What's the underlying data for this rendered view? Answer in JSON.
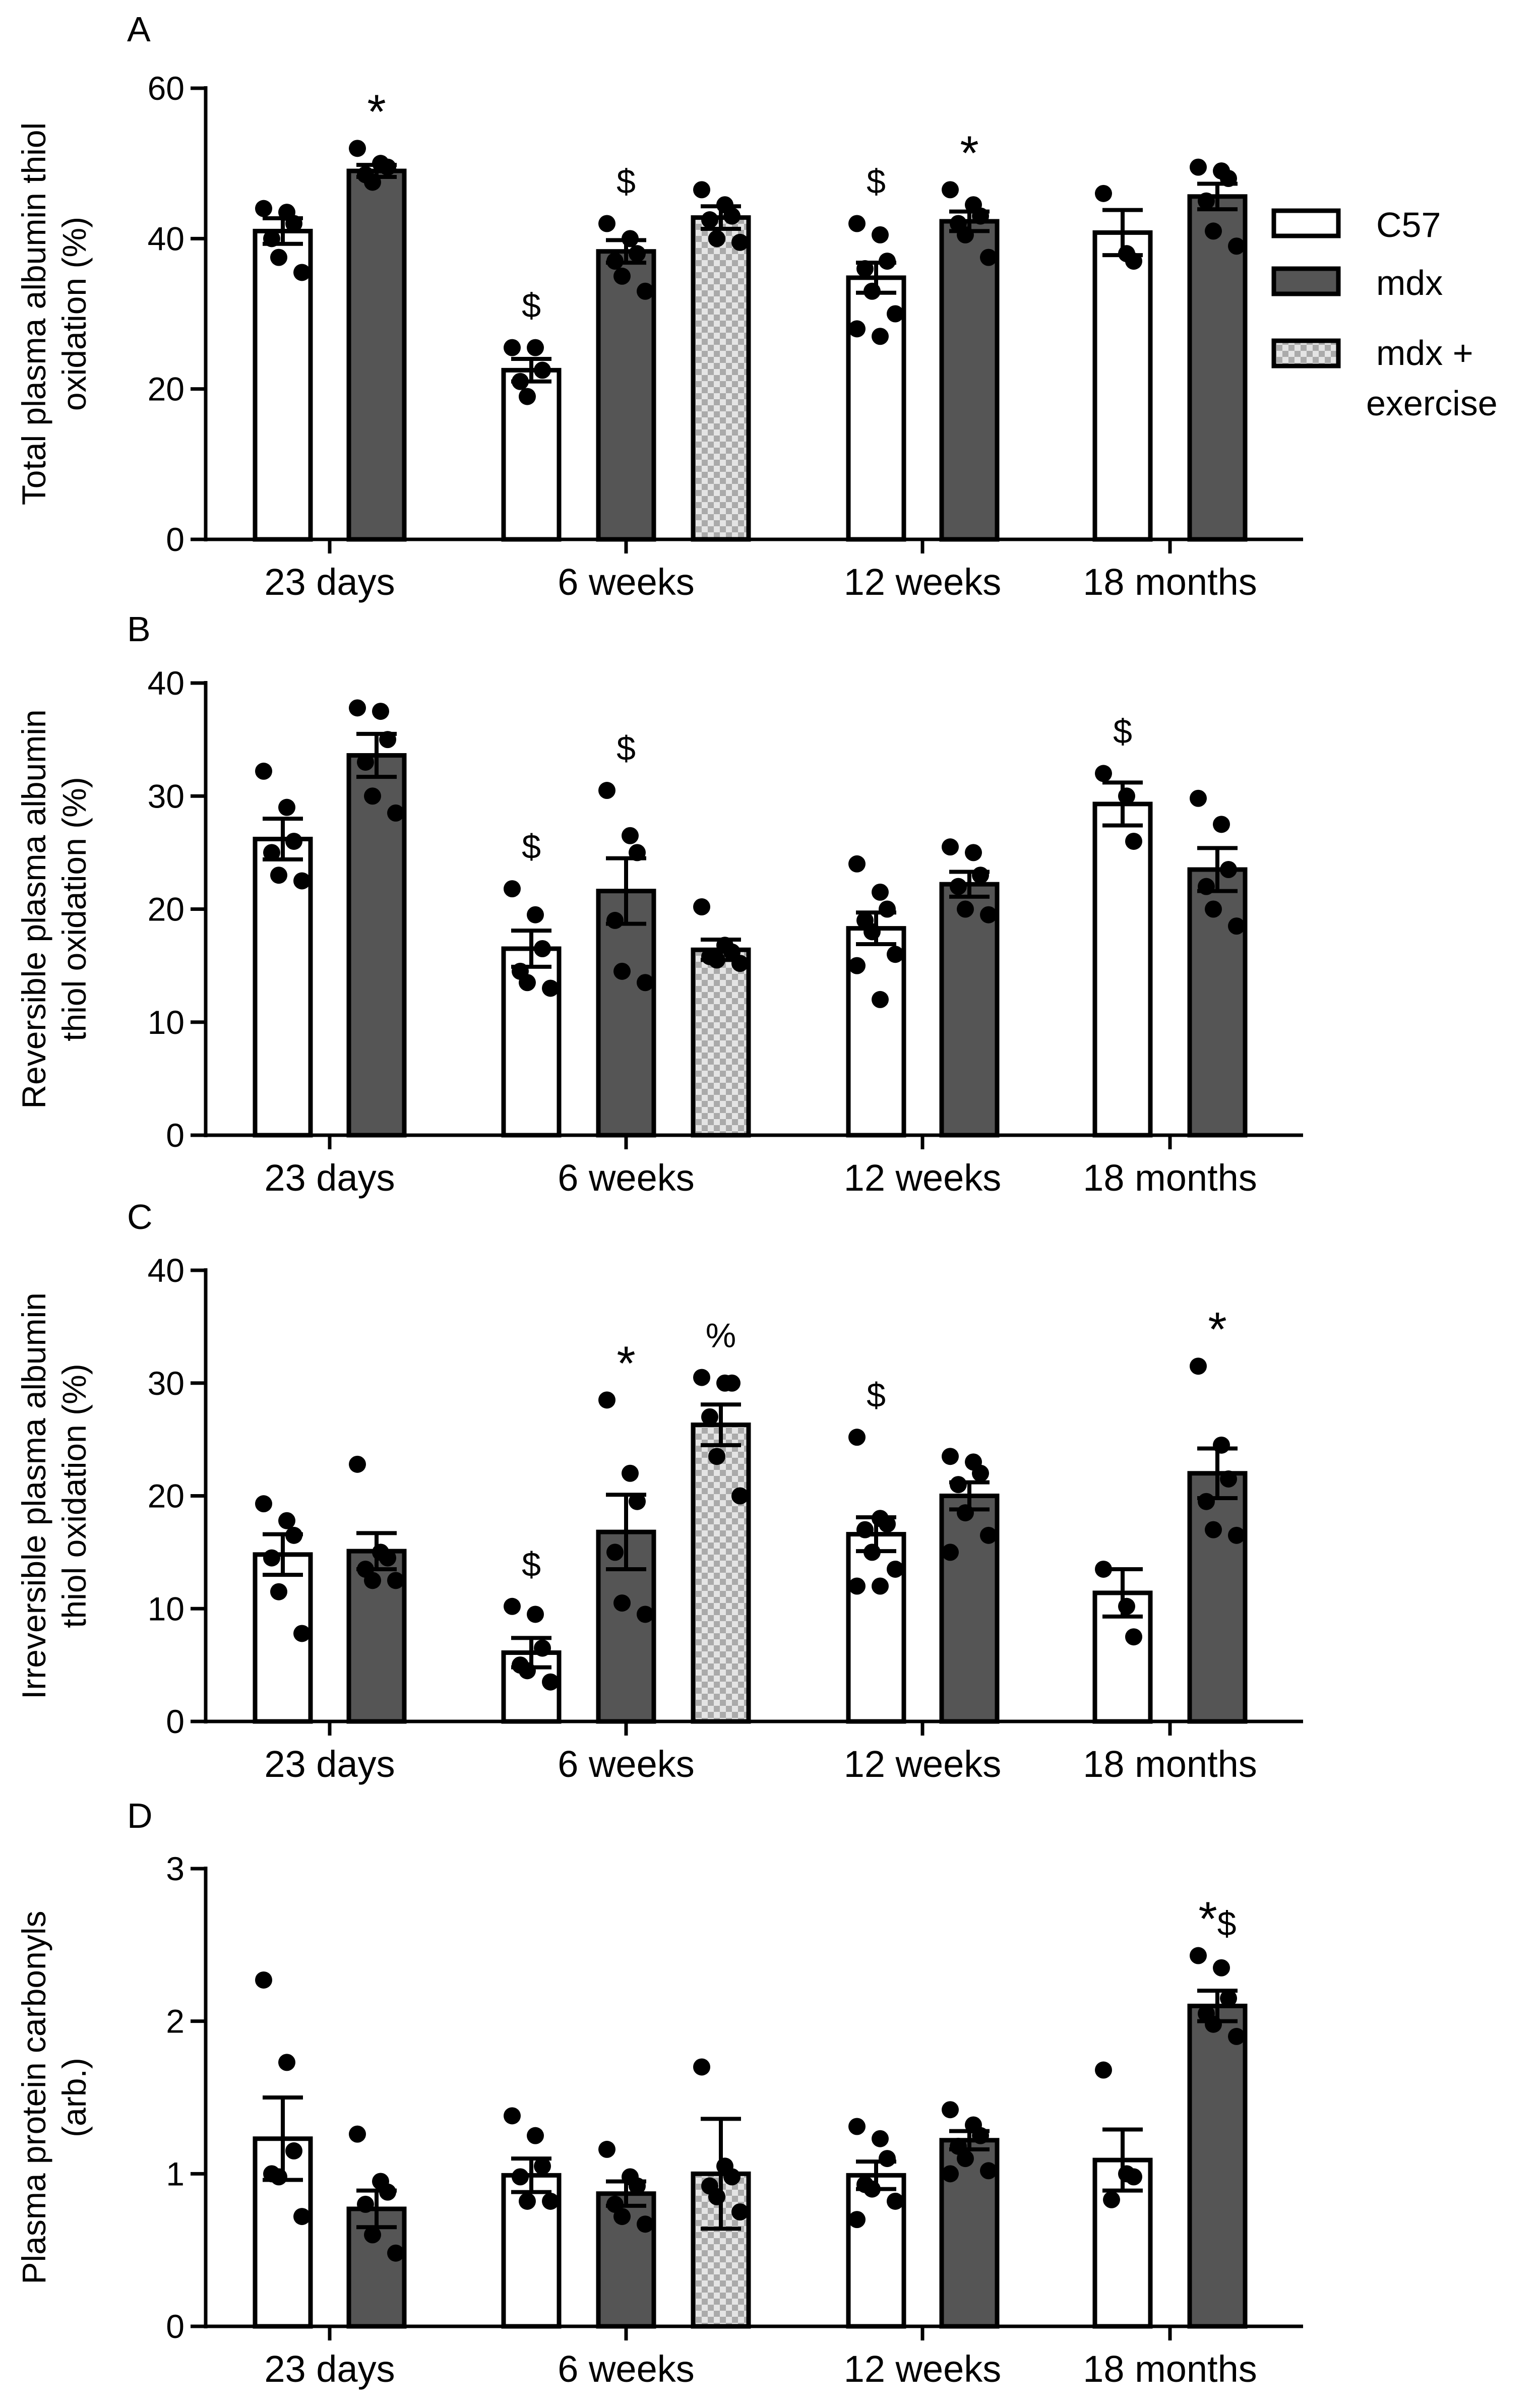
{
  "figure": {
    "legend": {
      "entries": [
        {
          "label": "C57",
          "pattern": "white"
        },
        {
          "label": "mdx",
          "pattern": "dark"
        },
        {
          "label_lines": [
            "mdx +",
            "exercise"
          ],
          "pattern": "checker"
        }
      ]
    },
    "colors": {
      "dark_bar": "#555555",
      "white_bar": "#ffffff",
      "stroke": "#000000",
      "checker_a": "#aaaaaa",
      "checker_b": "#e4e4e4"
    }
  },
  "chart_data": [
    {
      "type": "bar",
      "panel": "A",
      "ylabel_lines": [
        "Total plasma albumin thiol",
        "oxidation (%)"
      ],
      "ylim": [
        0,
        60
      ],
      "yticks": [
        "0",
        "20",
        "40",
        "60"
      ],
      "categories": [
        "23 days",
        "6 weeks",
        "12 weeks",
        "18 months"
      ],
      "series": [
        {
          "name": "C57",
          "values": [
            41,
            22.5,
            34.8,
            40.8
          ],
          "sem": [
            1.7,
            1.5,
            2,
            3
          ],
          "annotations": [
            "",
            "$",
            "$",
            ""
          ],
          "points": [
            [
              44,
              43.5,
              42,
              40,
              37.5,
              35.5
            ],
            [
              25.5,
              25.5,
              22.5,
              21,
              19
            ],
            [
              42,
              40.5,
              37,
              36,
              33,
              30,
              28,
              27
            ],
            [
              46,
              38,
              37
            ]
          ]
        },
        {
          "name": "mdx",
          "values": [
            49,
            38.3,
            42.3,
            45.6
          ],
          "sem": [
            0.8,
            1.5,
            1.3,
            1.7
          ],
          "annotations": [
            "*",
            "$",
            "*",
            ""
          ],
          "points": [
            [
              52,
              50,
              49.5,
              48.5,
              47.5
            ],
            [
              42,
              40,
              38,
              37,
              35,
              33
            ],
            [
              46.5,
              44.5,
              43,
              42,
              40.5,
              37.5
            ],
            [
              49.5,
              49,
              48,
              45,
              41,
              39
            ]
          ]
        },
        {
          "name": "mdx + exercise",
          "values": [
            null,
            42.8,
            null,
            null
          ],
          "sem": [
            null,
            1.5,
            null,
            null
          ],
          "annotations": [
            "",
            "",
            "",
            ""
          ],
          "points": [
            [],
            [
              46.5,
              44.5,
              43,
              42.5,
              40,
              39.5
            ],
            [],
            []
          ]
        }
      ]
    },
    {
      "type": "bar",
      "panel": "B",
      "ylabel_lines": [
        "Reversible plasma albumin",
        "thiol oxidation (%)"
      ],
      "ylim": [
        0,
        40
      ],
      "yticks": [
        "0",
        "10",
        "20",
        "30",
        "40"
      ],
      "categories": [
        "23 days",
        "6 weeks",
        "12 weeks",
        "18 months"
      ],
      "series": [
        {
          "name": "C57",
          "values": [
            26.2,
            16.5,
            18.3,
            29.3
          ],
          "sem": [
            1.8,
            1.6,
            1.4,
            1.9
          ],
          "annotations": [
            "",
            "$",
            "",
            "$"
          ],
          "points": [
            [
              32.2,
              29,
              26,
              25,
              23,
              22.5
            ],
            [
              21.8,
              19.5,
              16.5,
              14.5,
              13.5,
              13
            ],
            [
              24,
              21.5,
              20,
              19,
              18,
              16,
              15,
              12
            ],
            [
              32,
              30,
              26
            ]
          ]
        },
        {
          "name": "mdx",
          "values": [
            33.6,
            21.6,
            22.2,
            23.5
          ],
          "sem": [
            1.9,
            2.9,
            1.1,
            1.9
          ],
          "annotations": [
            "",
            "$",
            "",
            ""
          ],
          "points": [
            [
              37.8,
              37.5,
              35,
              33,
              30,
              28.5
            ],
            [
              30.5,
              26.5,
              25,
              19,
              14.5,
              13.5
            ],
            [
              25.5,
              25,
              23,
              22,
              20,
              19.5
            ],
            [
              29.8,
              27.5,
              23.5,
              22,
              20,
              18.5
            ]
          ]
        },
        {
          "name": "mdx + exercise",
          "values": [
            null,
            16.4,
            null,
            null
          ],
          "sem": [
            null,
            0.9,
            null,
            null
          ],
          "annotations": [
            "",
            "",
            "",
            ""
          ],
          "points": [
            [],
            [
              20.2,
              16.8,
              16.2,
              15.8,
              15.5,
              15.2
            ],
            [],
            []
          ]
        }
      ]
    },
    {
      "type": "bar",
      "panel": "C",
      "ylabel_lines": [
        "Irreversible plasma albumin",
        "thiol oxidation (%)"
      ],
      "ylim": [
        0,
        40
      ],
      "yticks": [
        "0",
        "10",
        "20",
        "30",
        "40"
      ],
      "categories": [
        "23 days",
        "6 weeks",
        "12 weeks",
        "18 months"
      ],
      "series": [
        {
          "name": "C57",
          "values": [
            14.8,
            6.1,
            16.6,
            11.4
          ],
          "sem": [
            1.8,
            1.3,
            1.5,
            2.1
          ],
          "annotations": [
            "",
            "$",
            "$",
            ""
          ],
          "points": [
            [
              19.3,
              17.8,
              16.5,
              14.5,
              11.5,
              7.8
            ],
            [
              10.2,
              9.5,
              6.5,
              5,
              4.5,
              3.5
            ],
            [
              25.2,
              18,
              17.5,
              17,
              15,
              13.5,
              12,
              12
            ],
            [
              13.5,
              10.2,
              7.5
            ]
          ]
        },
        {
          "name": "mdx",
          "values": [
            15.1,
            16.8,
            20,
            22
          ],
          "sem": [
            1.6,
            3.3,
            1.2,
            2.2
          ],
          "annotations": [
            "",
            "*",
            "",
            "*"
          ],
          "points": [
            [
              22.8,
              15,
              14.5,
              13.5,
              12.5,
              12.5
            ],
            [
              28.5,
              22,
              19.5,
              15,
              10.5,
              9.5
            ],
            [
              23.5,
              23,
              22,
              21,
              18.5,
              16.5,
              15
            ],
            [
              31.5,
              24.5,
              21.5,
              19.5,
              17,
              16.5
            ]
          ]
        },
        {
          "name": "mdx + exercise",
          "values": [
            null,
            26.3,
            null,
            null
          ],
          "sem": [
            null,
            1.8,
            null,
            null
          ],
          "annotations": [
            "",
            "%",
            "",
            ""
          ],
          "points": [
            [],
            [
              30.5,
              30,
              30,
              27,
              23.5,
              20
            ],
            [],
            []
          ]
        }
      ]
    },
    {
      "type": "bar",
      "panel": "D",
      "ylabel_lines": [
        "Plasma protein carbonyls",
        "(arb.)"
      ],
      "ylim": [
        0,
        3
      ],
      "yticks": [
        "0",
        "1",
        "2",
        "3"
      ],
      "categories": [
        "23 days",
        "6 weeks",
        "12 weeks",
        "18 months"
      ],
      "series": [
        {
          "name": "C57",
          "values": [
            1.23,
            0.99,
            0.99,
            1.09
          ],
          "sem": [
            0.27,
            0.11,
            0.09,
            0.2
          ],
          "annotations": [
            "",
            "",
            "",
            ""
          ],
          "points": [
            [
              2.27,
              1.73,
              1.15,
              1.0,
              0.98,
              0.72
            ],
            [
              1.38,
              1.25,
              1.05,
              0.98,
              0.82,
              0.82
            ],
            [
              1.31,
              1.23,
              1.1,
              0.93,
              0.9,
              0.82,
              0.7
            ],
            [
              1.68,
              1.0,
              0.98,
              0.83
            ]
          ]
        },
        {
          "name": "mdx",
          "values": [
            0.77,
            0.87,
            1.22,
            2.1
          ],
          "sem": [
            0.12,
            0.08,
            0.06,
            0.1
          ],
          "annotations": [
            "",
            "",
            "",
            "*$"
          ],
          "points": [
            [
              1.26,
              0.95,
              0.88,
              0.8,
              0.6,
              0.48
            ],
            [
              1.16,
              0.98,
              0.92,
              0.8,
              0.72,
              0.67
            ],
            [
              1.42,
              1.32,
              1.25,
              1.18,
              1.1,
              1.02,
              1.0
            ],
            [
              2.43,
              2.35,
              2.15,
              2.05,
              1.98,
              1.9
            ]
          ]
        },
        {
          "name": "mdx + exercise",
          "values": [
            null,
            1.0,
            null,
            null
          ],
          "sem": [
            null,
            0.36,
            null,
            null
          ],
          "annotations": [
            "",
            "",
            "",
            ""
          ],
          "points": [
            [],
            [
              1.7,
              1.05,
              0.98,
              0.92,
              0.85,
              0.75
            ],
            [],
            []
          ]
        }
      ]
    }
  ]
}
